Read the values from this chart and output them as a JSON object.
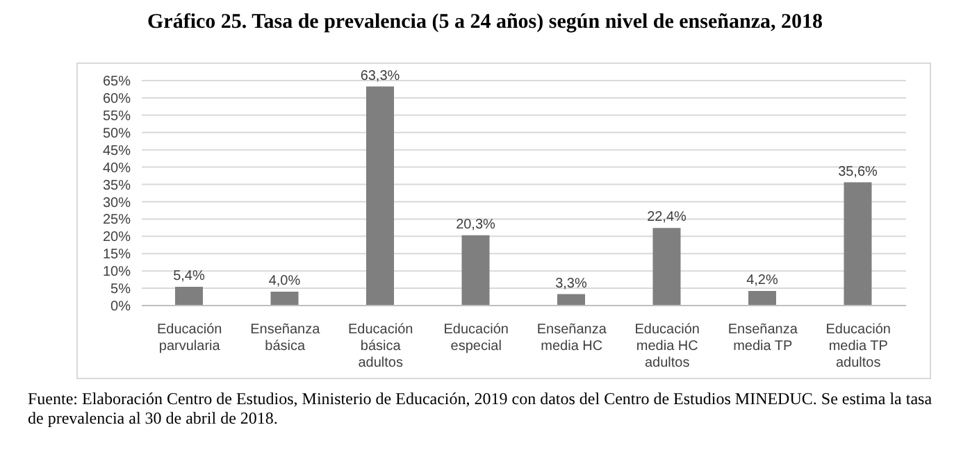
{
  "chart_data": {
    "type": "bar",
    "title": "Gráfico 25. Tasa de prevalencia (5 a 24 años) según nivel de enseñanza, 2018",
    "categories": [
      "Educación parvularia",
      "Enseñanza básica",
      "Educación básica adultos",
      "Educación especial",
      "Enseñanza media HC",
      "Educación media HC adultos",
      "Enseñanza media TP",
      "Educación media TP adultos"
    ],
    "values": [
      5.4,
      4.0,
      63.3,
      20.3,
      3.3,
      22.4,
      4.2,
      35.6
    ],
    "value_labels": [
      "5,4%",
      "4,0%",
      "63,3%",
      "20,3%",
      "3,3%",
      "22,4%",
      "4,2%",
      "35,6%"
    ],
    "color": "#7f7f7f",
    "ylim": [
      0,
      65
    ],
    "yticks": [
      {
        "value": 0,
        "label": "0%"
      },
      {
        "value": 5,
        "label": "5%"
      },
      {
        "value": 10,
        "label": "10%"
      },
      {
        "value": 15,
        "label": "15%"
      },
      {
        "value": 20,
        "label": "20%"
      },
      {
        "value": 25,
        "label": "25%"
      },
      {
        "value": 30,
        "label": "30%"
      },
      {
        "value": 35,
        "label": "35%"
      },
      {
        "value": 40,
        "label": "40%"
      },
      {
        "value": 45,
        "label": "45%"
      },
      {
        "value": 50,
        "label": "50%"
      },
      {
        "value": 55,
        "label": "55%"
      },
      {
        "value": 60,
        "label": "60%"
      },
      {
        "value": 65,
        "label": "65%"
      }
    ],
    "grid": "y",
    "legend": false,
    "annotations": [
      "Fuente: Elaboración Centro de Estudios, Ministerio de Educación, 2019 con datos del Centro de Estudios MINEDUC. Se estima la tasa de prevalencia al 30 de abril de 2018."
    ]
  }
}
